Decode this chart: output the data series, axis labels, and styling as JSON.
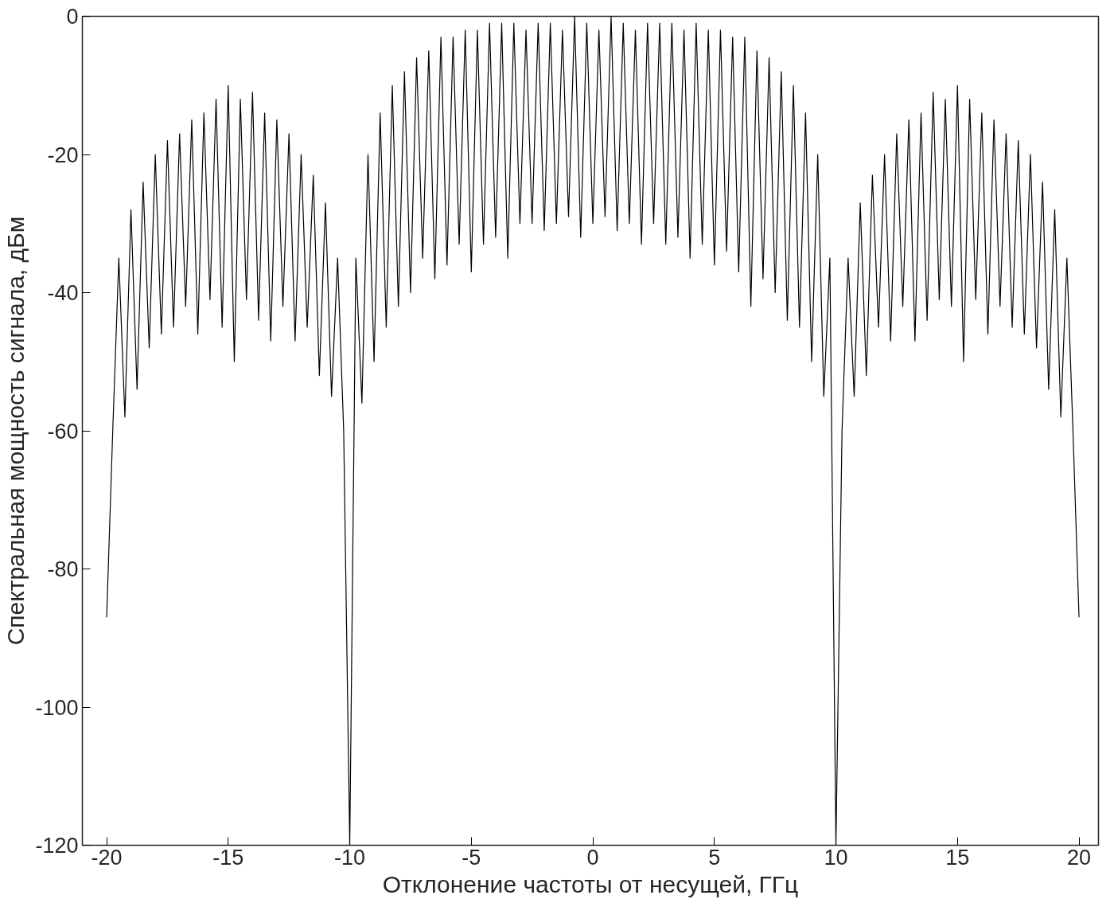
{
  "chart_data": {
    "type": "line",
    "xlabel": "Отклонение частоты от несущей, ГГц",
    "ylabel": "Спектральная мощность сигнала, дБм",
    "xlim": [
      -21,
      20.8
    ],
    "ylim": [
      -120,
      0
    ],
    "xticks": [
      -20,
      -15,
      -10,
      -5,
      0,
      5,
      10,
      15,
      20
    ],
    "yticks": [
      -120,
      -100,
      -80,
      -60,
      -40,
      -20,
      0
    ],
    "x": [
      -20,
      -19.75,
      -19.5,
      -19.25,
      -19,
      -18.75,
      -18.5,
      -18.25,
      -18,
      -17.75,
      -17.5,
      -17.25,
      -17,
      -16.75,
      -16.5,
      -16.25,
      -16,
      -15.75,
      -15.5,
      -15.25,
      -15,
      -14.75,
      -14.5,
      -14.25,
      -14,
      -13.75,
      -13.5,
      -13.25,
      -13,
      -12.75,
      -12.5,
      -12.25,
      -12,
      -11.75,
      -11.5,
      -11.25,
      -11,
      -10.75,
      -10.5,
      -10.25,
      -10,
      -9.75,
      -9.5,
      -9.25,
      -9,
      -8.75,
      -8.5,
      -8.25,
      -8,
      -7.75,
      -7.5,
      -7.25,
      -7,
      -6.75,
      -6.5,
      -6.25,
      -6,
      -5.75,
      -5.5,
      -5.25,
      -5,
      -4.75,
      -4.5,
      -4.25,
      -4,
      -3.75,
      -3.5,
      -3.25,
      -3,
      -2.75,
      -2.5,
      -2.25,
      -2,
      -1.75,
      -1.5,
      -1.25,
      -1,
      -0.75,
      -0.5,
      -0.25,
      0,
      0.25,
      0.5,
      0.75,
      1,
      1.25,
      1.5,
      1.75,
      2,
      2.25,
      2.5,
      2.75,
      3,
      3.25,
      3.5,
      3.75,
      4,
      4.25,
      4.5,
      4.75,
      5,
      5.25,
      5.5,
      5.75,
      6,
      6.25,
      6.5,
      6.75,
      7,
      7.25,
      7.5,
      7.75,
      8,
      8.25,
      8.5,
      8.75,
      9,
      9.25,
      9.5,
      9.75,
      10,
      10.25,
      10.5,
      10.75,
      11,
      11.25,
      11.5,
      11.75,
      12,
      12.25,
      12.5,
      12.75,
      13,
      13.25,
      13.5,
      13.75,
      14,
      14.25,
      14.5,
      14.75,
      15,
      15.25,
      15.5,
      15.75,
      16,
      16.25,
      16.5,
      16.75,
      17,
      17.25,
      17.5,
      17.75,
      18,
      18.25,
      18.5,
      18.75,
      19,
      19.25,
      19.5,
      19.75,
      20
    ],
    "series": [
      {
        "color": "#000000",
        "values": [
          -87,
          -60,
          -35,
          -58,
          -28,
          -54,
          -24,
          -48,
          -20,
          -46,
          -18,
          -45,
          -17,
          -42,
          -15,
          -46,
          -14,
          -41,
          -12,
          -45,
          -10,
          -50,
          -12,
          -41,
          -11,
          -44,
          -14,
          -47,
          -15,
          -42,
          -17,
          -47,
          -20,
          -45,
          -23,
          -52,
          -27,
          -55,
          -35,
          -60,
          -120,
          -35,
          -56,
          -20,
          -50,
          -14,
          -45,
          -10,
          -42,
          -8,
          -40,
          -6,
          -35,
          -5,
          -38,
          -3,
          -36,
          -3,
          -33,
          -2,
          -37,
          -2,
          -33,
          -1,
          -32,
          -1,
          -35,
          -1,
          -30,
          -2,
          -30,
          -1,
          -31,
          -1,
          -30,
          -2,
          -29,
          0,
          -32,
          -1,
          -30,
          -2,
          -29,
          0,
          -31,
          -1,
          -30,
          -2,
          -33,
          -1,
          -30,
          -1,
          -33,
          -1,
          -32,
          -2,
          -35,
          -1,
          -33,
          -2,
          -36,
          -2,
          -34,
          -3,
          -37,
          -3,
          -42,
          -5,
          -38,
          -6,
          -40,
          -8,
          -44,
          -10,
          -45,
          -14,
          -50,
          -20,
          -55,
          -35,
          -120,
          -60,
          -35,
          -55,
          -27,
          -52,
          -23,
          -45,
          -20,
          -47,
          -17,
          -42,
          -15,
          -47,
          -14,
          -44,
          -11,
          -41,
          -12,
          -42,
          -10,
          -50,
          -12,
          -41,
          -14,
          -46,
          -15,
          -42,
          -17,
          -45,
          -18,
          -46,
          -20,
          -48,
          -24,
          -54,
          -28,
          -58,
          -35,
          -60,
          -87
        ]
      }
    ]
  }
}
